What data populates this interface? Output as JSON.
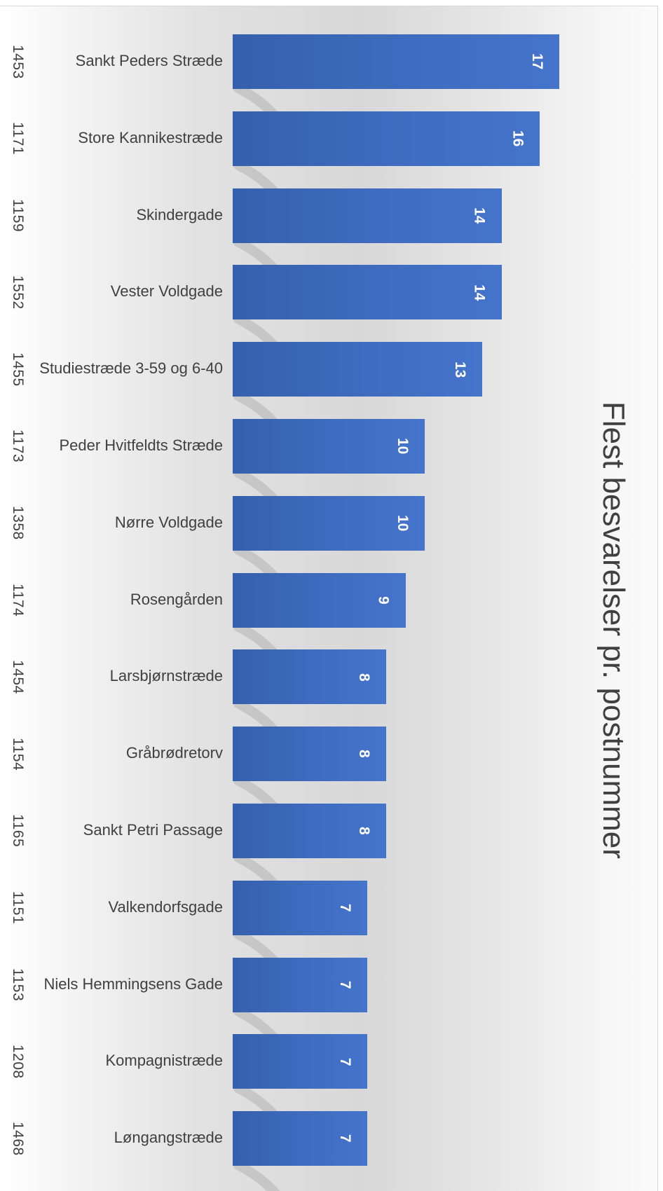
{
  "chart_data": {
    "type": "bar",
    "orientation": "horizontal",
    "title": "Flest besvarelser pr. postnummer",
    "postcodes": [
      "1453",
      "1171",
      "1159",
      "1552",
      "1455",
      "1173",
      "1358",
      "1174",
      "1454",
      "1154",
      "1165",
      "1151",
      "1153",
      "1208",
      "1468"
    ],
    "categories": [
      "Sankt Peders Stræde",
      "Store Kannikestræde",
      "Skindergade",
      "Vester Voldgade",
      "Studiestræde 3-59 og 6-40",
      "Peder Hvitfeldts Stræde",
      "Nørre Voldgade",
      "Rosengården",
      "Larsbjørnstræde",
      "Gråbrødretorv",
      "Sankt Petri Passage",
      "Valkendorfsgade",
      "Niels Hemmingsens Gade",
      "Kompagnistræde",
      "Løngangstræde"
    ],
    "values": [
      17,
      16,
      14,
      14,
      13,
      10,
      10,
      9,
      8,
      8,
      8,
      7,
      7,
      7,
      7
    ],
    "xlim": [
      0,
      18
    ],
    "grid": false,
    "legend": "none",
    "bar_color": "#4472C4",
    "data_labels": true
  }
}
